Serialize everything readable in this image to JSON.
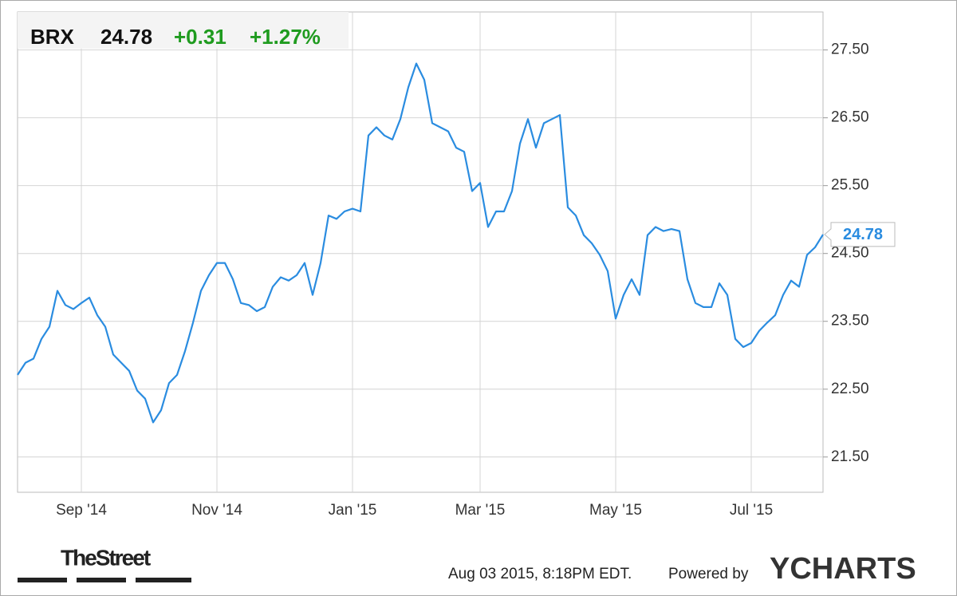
{
  "chart_data": {
    "type": "line",
    "ticker": "BRX",
    "change": "+0.31",
    "change_pct": "+1.27%",
    "color": "#2a8ce0",
    "change_color": "#1f9b1f",
    "grid": true,
    "ylim": [
      20.98,
      28.06
    ],
    "yticks": [
      {
        "value": 21.5,
        "label": "21.50"
      },
      {
        "value": 22.5,
        "label": "22.50"
      },
      {
        "value": 23.5,
        "label": "23.50"
      },
      {
        "value": 24.5,
        "label": "24.50"
      },
      {
        "value": 25.5,
        "label": "25.50"
      },
      {
        "value": 26.5,
        "label": "26.50"
      },
      {
        "value": 27.5,
        "label": "27.50"
      }
    ],
    "categories": [
      null,
      null,
      null,
      null,
      null,
      null,
      null,
      null,
      "Sep '14",
      null,
      null,
      null,
      null,
      null,
      null,
      null,
      null,
      null,
      null,
      null,
      null,
      null,
      null,
      null,
      null,
      "Nov '14",
      null,
      null,
      null,
      null,
      null,
      null,
      null,
      null,
      null,
      null,
      null,
      null,
      null,
      null,
      null,
      null,
      "Jan '15",
      null,
      null,
      null,
      null,
      null,
      null,
      null,
      null,
      null,
      null,
      null,
      null,
      null,
      null,
      null,
      "Mar '15",
      null,
      null,
      null,
      null,
      null,
      null,
      null,
      null,
      null,
      null,
      null,
      null,
      null,
      null,
      null,
      null,
      "May '15",
      null,
      null,
      null,
      null,
      null,
      null,
      null,
      null,
      null,
      null,
      null,
      null,
      null,
      null,
      null,
      null,
      "Jul '15",
      null,
      null,
      null,
      null,
      null,
      null,
      null,
      null,
      null
    ],
    "values": [
      22.71,
      22.89,
      22.95,
      23.24,
      23.42,
      23.95,
      23.74,
      23.68,
      23.77,
      23.85,
      23.59,
      23.42,
      23.01,
      22.89,
      22.77,
      22.48,
      22.36,
      22.01,
      22.19,
      22.59,
      22.71,
      23.06,
      23.48,
      23.95,
      24.18,
      24.36,
      24.36,
      24.12,
      23.77,
      23.74,
      23.65,
      23.71,
      24.01,
      24.15,
      24.1,
      24.18,
      24.36,
      23.89,
      24.36,
      25.06,
      25.01,
      25.12,
      25.16,
      25.12,
      26.24,
      26.36,
      26.24,
      26.18,
      26.48,
      26.95,
      27.3,
      27.06,
      26.42,
      26.36,
      26.3,
      26.06,
      26.0,
      25.42,
      25.54,
      24.89,
      25.12,
      25.12,
      25.42,
      26.12,
      26.48,
      26.06,
      26.42,
      26.48,
      26.54,
      25.18,
      25.06,
      24.77,
      24.65,
      24.48,
      24.24,
      23.54,
      23.89,
      24.12,
      23.89,
      24.77,
      24.89,
      24.83,
      24.86,
      24.83,
      24.12,
      23.77,
      23.71,
      23.71,
      24.06,
      23.89,
      23.24,
      23.12,
      23.18,
      23.36,
      23.48,
      23.59,
      23.89,
      24.1,
      24.01,
      24.48,
      24.59,
      24.78
    ],
    "source": "TheStreet",
    "timestamp": "Aug 03 2015, 8:18PM EDT.",
    "powered_by": "Powered by",
    "brand": "YCHARTS"
  }
}
